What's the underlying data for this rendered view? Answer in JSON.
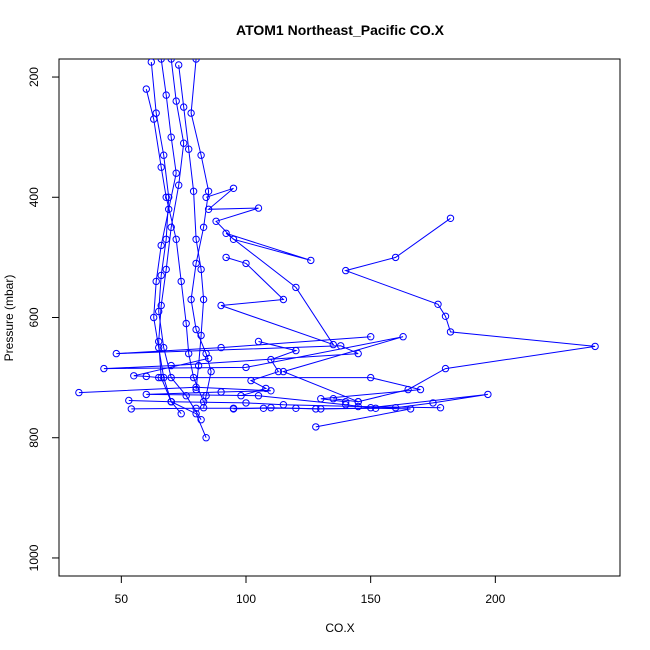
{
  "chart_data": {
    "type": "scatter",
    "title": "ATOM1 Northeast_Pacific CO.X",
    "xlabel": "CO.X",
    "ylabel": "Pressure (mbar)",
    "xlim": [
      25,
      250
    ],
    "ylim": [
      1030,
      170
    ],
    "y_reversed": true,
    "x_ticks": [
      "50",
      "100",
      "150",
      "200"
    ],
    "x_tick_values": [
      50,
      100,
      150,
      200
    ],
    "y_ticks": [
      "200",
      "400",
      "600",
      "800",
      "1000"
    ],
    "y_tick_values": [
      200,
      400,
      600,
      800,
      1000
    ],
    "grid": false,
    "legend": "none",
    "series_color": "#0000ff",
    "marker": "open-circle",
    "series": [
      {
        "values": [
          [
            66,
            170
          ],
          [
            68,
            230
          ],
          [
            70,
            300
          ],
          [
            72,
            360
          ],
          [
            69,
            420
          ],
          [
            66,
            480
          ],
          [
            64,
            540
          ],
          [
            63,
            600
          ],
          [
            65,
            650
          ],
          [
            67,
            700
          ],
          [
            70,
            740
          ],
          [
            74,
            760
          ]
        ]
      },
      {
        "values": [
          [
            70,
            170
          ],
          [
            72,
            240
          ],
          [
            75,
            310
          ],
          [
            73,
            380
          ],
          [
            70,
            450
          ],
          [
            68,
            520
          ],
          [
            66,
            580
          ],
          [
            65,
            640
          ],
          [
            66,
            700
          ],
          [
            70,
            740
          ],
          [
            80,
            760
          ],
          [
            84,
            800
          ]
        ]
      },
      {
        "values": [
          [
            80,
            170
          ],
          [
            78,
            260
          ],
          [
            82,
            330
          ],
          [
            85,
            390
          ],
          [
            83,
            450
          ],
          [
            80,
            510
          ],
          [
            78,
            570
          ],
          [
            80,
            620
          ],
          [
            84,
            660
          ],
          [
            86,
            690
          ],
          [
            84,
            730
          ],
          [
            83,
            750
          ]
        ]
      },
      {
        "values": [
          [
            62,
            175
          ],
          [
            64,
            260
          ],
          [
            67,
            330
          ],
          [
            69,
            400
          ],
          [
            68,
            470
          ],
          [
            66,
            530
          ],
          [
            65,
            590
          ],
          [
            67,
            650
          ],
          [
            70,
            700
          ],
          [
            76,
            730
          ],
          [
            82,
            770
          ]
        ]
      },
      {
        "values": [
          [
            60,
            220
          ],
          [
            63,
            270
          ],
          [
            66,
            350
          ],
          [
            68,
            400
          ],
          [
            72,
            470
          ],
          [
            74,
            540
          ],
          [
            76,
            610
          ],
          [
            77,
            660
          ],
          [
            79,
            700
          ],
          [
            83,
            740
          ]
        ]
      },
      {
        "values": [
          [
            73,
            180
          ],
          [
            75,
            250
          ],
          [
            77,
            320
          ],
          [
            79,
            390
          ],
          [
            80,
            470
          ],
          [
            82,
            520
          ],
          [
            83,
            570
          ],
          [
            82,
            630
          ],
          [
            81,
            680
          ],
          [
            80,
            720
          ]
        ]
      },
      {
        "values": [
          [
            84,
            400
          ],
          [
            95,
            385
          ],
          [
            85,
            420
          ],
          [
            105,
            418
          ],
          [
            88,
            440
          ],
          [
            95,
            470
          ],
          [
            126,
            505
          ],
          [
            92,
            460
          ],
          [
            120,
            550
          ],
          [
            135,
            645
          ],
          [
            90,
            580
          ],
          [
            115,
            570
          ],
          [
            100,
            510
          ],
          [
            92,
            500
          ]
        ]
      },
      {
        "values": [
          [
            182,
            435
          ],
          [
            160,
            500
          ],
          [
            140,
            522
          ],
          [
            177,
            578
          ],
          [
            180,
            598
          ],
          [
            182,
            624
          ],
          [
            240,
            648
          ],
          [
            180,
            685
          ],
          [
            165,
            720
          ],
          [
            145,
            740
          ],
          [
            135,
            735
          ]
        ]
      },
      {
        "values": [
          [
            150,
            632
          ],
          [
            90,
            650
          ],
          [
            48,
            660
          ],
          [
            138,
            647
          ],
          [
            145,
            660
          ],
          [
            70,
            680
          ],
          [
            43,
            685
          ],
          [
            100,
            683
          ],
          [
            163,
            632
          ],
          [
            115,
            690
          ],
          [
            145,
            740
          ]
        ]
      },
      {
        "values": [
          [
            85,
            668
          ],
          [
            55,
            697
          ],
          [
            60,
            698
          ],
          [
            65,
            700
          ],
          [
            150,
            700
          ],
          [
            170,
            720
          ],
          [
            130,
            735
          ],
          [
            140,
            740
          ]
        ]
      },
      {
        "values": [
          [
            33,
            725
          ],
          [
            80,
            716
          ],
          [
            110,
            722
          ],
          [
            90,
            724
          ],
          [
            60,
            728
          ],
          [
            105,
            730
          ],
          [
            140,
            745
          ],
          [
            150,
            750
          ],
          [
            197,
            728
          ],
          [
            175,
            742
          ],
          [
            160,
            750
          ],
          [
            128,
            752
          ],
          [
            110,
            750
          ],
          [
            95,
            752
          ]
        ]
      },
      {
        "values": [
          [
            53,
            738
          ],
          [
            70,
            740
          ],
          [
            100,
            742
          ],
          [
            115,
            745
          ],
          [
            145,
            748
          ],
          [
            178,
            750
          ]
        ]
      },
      {
        "values": [
          [
            54,
            752
          ],
          [
            80,
            751
          ],
          [
            95,
            751
          ],
          [
            107,
            751
          ],
          [
            120,
            751
          ],
          [
            130,
            752
          ],
          [
            152,
            751
          ],
          [
            166,
            752
          ],
          [
            128,
            782
          ]
        ]
      },
      {
        "values": [
          [
            105,
            640
          ],
          [
            120,
            655
          ],
          [
            110,
            670
          ],
          [
            113,
            690
          ],
          [
            102,
            705
          ],
          [
            108,
            718
          ],
          [
            98,
            730
          ]
        ]
      }
    ]
  }
}
